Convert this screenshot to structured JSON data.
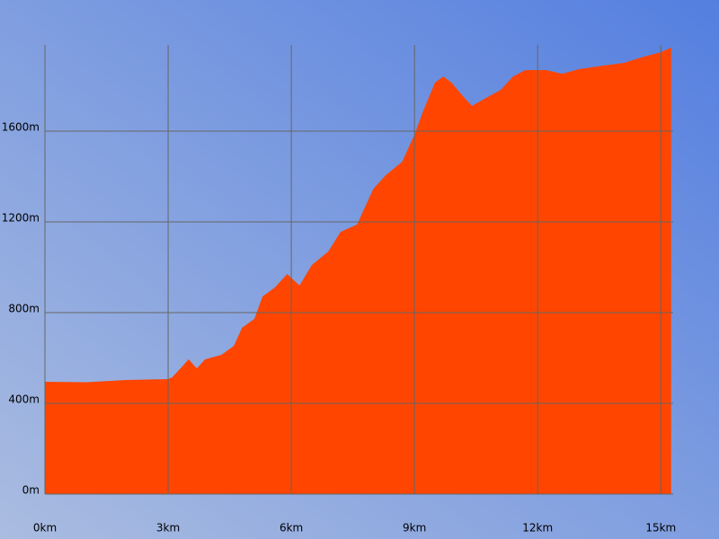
{
  "chart_data": {
    "type": "area",
    "color": "#ff4500",
    "grid": true,
    "x": [
      0,
      1,
      2,
      3,
      3.1,
      3.3,
      3.5,
      3.7,
      3.9,
      4.3,
      4.6,
      4.8,
      5.1,
      5.3,
      5.6,
      5.9,
      6.2,
      6.5,
      6.9,
      7.2,
      7.6,
      8.0,
      8.3,
      8.7,
      9.0,
      9.2,
      9.5,
      9.7,
      9.9,
      10.2,
      10.4,
      10.7,
      11.1,
      11.4,
      11.7,
      12.2,
      12.6,
      13.0,
      13.6,
      14.1,
      14.6,
      15.0,
      15.25
    ],
    "values": [
      495,
      493,
      503,
      507,
      515,
      554,
      594,
      554,
      594,
      614,
      653,
      733,
      772,
      871,
      911,
      970,
      919,
      1010,
      1069,
      1156,
      1188,
      1346,
      1406,
      1465,
      1584,
      1683,
      1814,
      1841,
      1814,
      1750,
      1711,
      1742,
      1782,
      1841,
      1869,
      1869,
      1853,
      1873,
      1889,
      1901,
      1929,
      1948,
      1968
    ],
    "xlim": [
      0,
      15.3
    ],
    "ylim": [
      0,
      1980
    ],
    "xticks": [
      {
        "value": 0,
        "label": "0km"
      },
      {
        "value": 3,
        "label": "3km"
      },
      {
        "value": 6,
        "label": "6km"
      },
      {
        "value": 9,
        "label": "9km"
      },
      {
        "value": 12,
        "label": "12km"
      },
      {
        "value": 15,
        "label": "15km"
      }
    ],
    "yticks": [
      {
        "value": 0,
        "label": "0m"
      },
      {
        "value": 400,
        "label": "400m"
      },
      {
        "value": 800,
        "label": "800m"
      },
      {
        "value": 1200,
        "label": "1200m"
      },
      {
        "value": 1600,
        "label": "1600m"
      }
    ]
  }
}
